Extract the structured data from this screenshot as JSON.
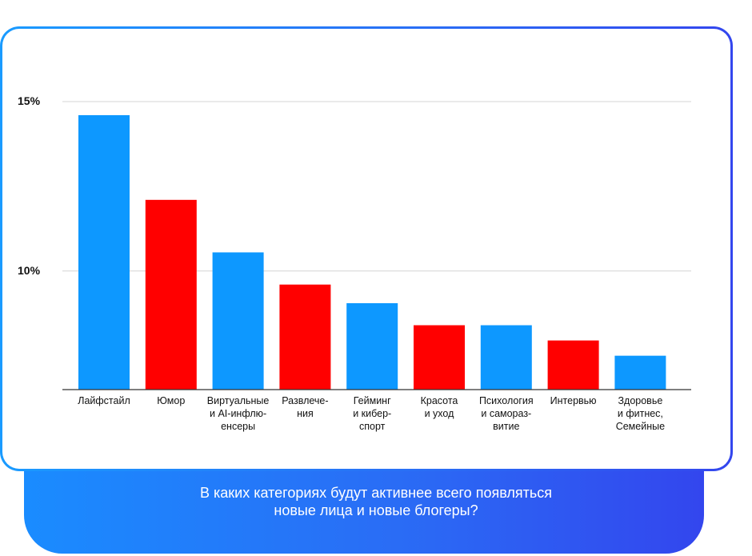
{
  "question": {
    "line1": "В каких категориях будут активнее всего появляться",
    "line2": "новые лица и новые блогеры?"
  },
  "colors": {
    "blue": "#0d98ff",
    "red": "#ff0000",
    "accent": "#2a6cf5"
  },
  "chart_data": {
    "type": "bar",
    "title": "",
    "xlabel": "",
    "ylabel": "",
    "ylim": [
      6.5,
      15
    ],
    "yticks": [
      10,
      15
    ],
    "ytick_labels": [
      "10%",
      "15%"
    ],
    "grid": true,
    "categories": [
      "Лайфстайл",
      "Юмор",
      "Виртуальные\nи AI-инфлю-\nенсеры",
      "Развлече-\nния",
      "Гейминг\nи кибер-\nспорт",
      "Красота\nи уход",
      "Психология\nи самораз-\nвитие",
      "Интервью",
      "Здоровье\nи фитнес,\nСемейные"
    ],
    "values": [
      14.6,
      12.1,
      10.55,
      9.6,
      9.05,
      8.4,
      8.4,
      7.95,
      7.5
    ],
    "bar_colors": [
      "blue",
      "red",
      "blue",
      "red",
      "blue",
      "red",
      "blue",
      "red",
      "blue"
    ]
  }
}
